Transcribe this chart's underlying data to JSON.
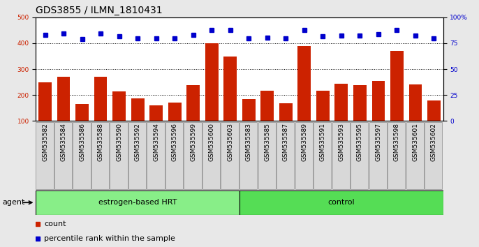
{
  "title": "GDS3855 / ILMN_1810431",
  "categories": [
    "GSM535582",
    "GSM535584",
    "GSM535586",
    "GSM535588",
    "GSM535590",
    "GSM535592",
    "GSM535594",
    "GSM535596",
    "GSM535599",
    "GSM535600",
    "GSM535603",
    "GSM535583",
    "GSM535585",
    "GSM535587",
    "GSM535589",
    "GSM535591",
    "GSM535593",
    "GSM535595",
    "GSM535597",
    "GSM535598",
    "GSM535601",
    "GSM535602"
  ],
  "bar_values": [
    248,
    272,
    165,
    272,
    215,
    188,
    160,
    172,
    238,
    400,
    350,
    185,
    218,
    168,
    388,
    218,
    245,
    238,
    255,
    370,
    242,
    178
  ],
  "dot_values": [
    432,
    437,
    415,
    437,
    427,
    418,
    418,
    418,
    432,
    452,
    450,
    420,
    422,
    418,
    452,
    427,
    430,
    430,
    435,
    452,
    430,
    418
  ],
  "group1_label": "estrogen-based HRT",
  "group1_count": 11,
  "group2_label": "control",
  "group2_count": 11,
  "agent_label": "agent",
  "bar_color": "#cc2200",
  "dot_color": "#0000cc",
  "group1_bg": "#88ee88",
  "group2_bg": "#55dd55",
  "tick_box_bg": "#d8d8d8",
  "ylim_left": [
    100,
    500
  ],
  "ylim_right": [
    0,
    100
  ],
  "yticks_left": [
    100,
    200,
    300,
    400,
    500
  ],
  "yticks_right": [
    0,
    25,
    50,
    75,
    100
  ],
  "ylabel_left_color": "#cc2200",
  "ylabel_right_color": "#0000cc",
  "legend_count_label": "count",
  "legend_pct_label": "percentile rank within the sample",
  "title_fontsize": 10,
  "tick_fontsize": 6.5,
  "label_fontsize": 8,
  "fig_bg": "#e8e8e8"
}
